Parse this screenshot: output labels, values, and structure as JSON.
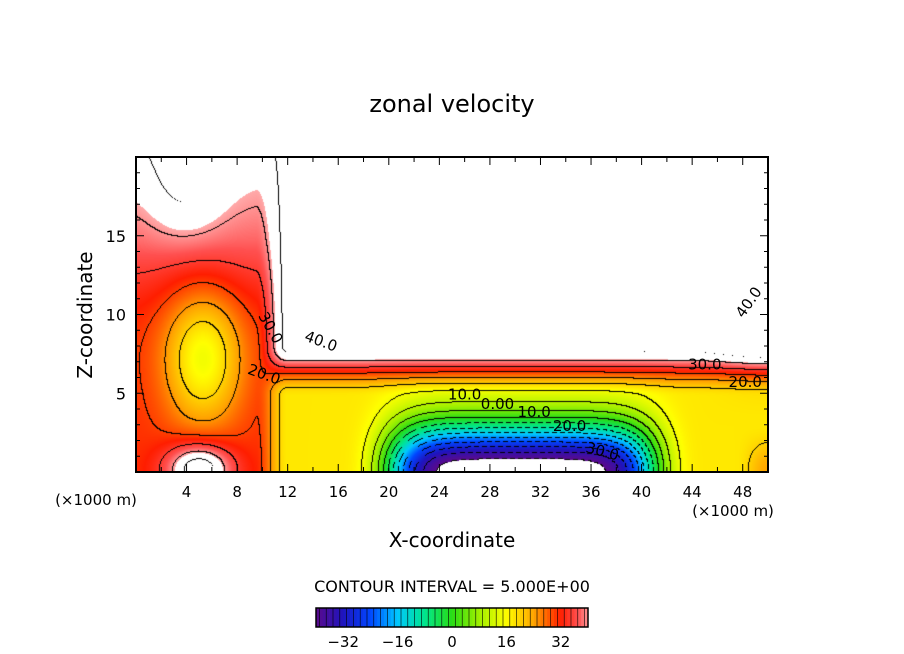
{
  "chart_data": {
    "type": "heatmap",
    "subtype": "filled-contour",
    "title": "zonal velocity",
    "xlabel": "X-coordinate",
    "ylabel": "Z-coordinate",
    "x_unit_label": "(×1000 m)",
    "xlim": [
      0,
      50
    ],
    "ylim": [
      0,
      20
    ],
    "x_ticks": [
      4,
      8,
      12,
      16,
      20,
      24,
      28,
      32,
      36,
      40,
      44,
      48
    ],
    "y_ticks": [
      5,
      10,
      15
    ],
    "contour_interval_label": "CONTOUR INTERVAL = 5.000E+00",
    "contour_interval": 5,
    "contour_labels": [
      {
        "text": "40.0",
        "x": 14.5,
        "z": 8.0,
        "rot": 20
      },
      {
        "text": "30.0",
        "x": 10.3,
        "z": 9.0,
        "rot": 60
      },
      {
        "text": "20.0",
        "x": 10.0,
        "z": 5.9,
        "rot": 20
      },
      {
        "text": "40.0",
        "x": 48.8,
        "z": 10.6,
        "rot": -55
      },
      {
        "text": "30.0",
        "x": 45.0,
        "z": 6.5,
        "rot": 0
      },
      {
        "text": "20.0",
        "x": 48.2,
        "z": 5.4,
        "rot": 0
      },
      {
        "text": "10.0",
        "x": 26.0,
        "z": 4.6,
        "rot": 0
      },
      {
        "text": "0.00",
        "x": 28.6,
        "z": 4.0,
        "rot": 0
      },
      {
        "text": "10.0",
        "x": 31.5,
        "z": 3.5,
        "rot": 0
      },
      {
        "text": "20.0",
        "x": 34.3,
        "z": 2.6,
        "rot": 0
      },
      {
        "text": "30.0",
        "x": 36.8,
        "z": 1.0,
        "rot": 15
      }
    ],
    "colorbar": {
      "range": [
        -40,
        40
      ],
      "ticks": [
        "-32",
        "-16",
        "0",
        "16",
        "32"
      ],
      "tick_values": [
        -32,
        -16,
        0,
        16,
        32
      ]
    },
    "field_description": {
      "upper_core_max_above": 40,
      "lower_core_min_below": -35,
      "local_min_left": {
        "x": 5,
        "z": 7,
        "value": 14
      }
    }
  }
}
